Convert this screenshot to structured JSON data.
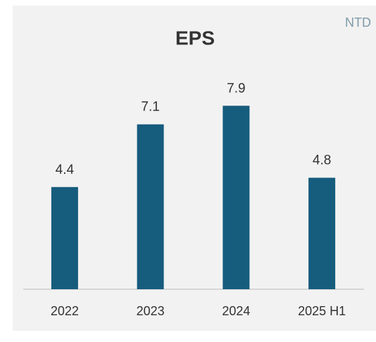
{
  "chart_data": {
    "type": "bar",
    "title": "EPS",
    "unit": "NTD",
    "categories": [
      "2022",
      "2023",
      "2024",
      "2025 H1"
    ],
    "values": [
      4.4,
      7.1,
      7.9,
      4.8
    ],
    "color": "#165c7d"
  }
}
